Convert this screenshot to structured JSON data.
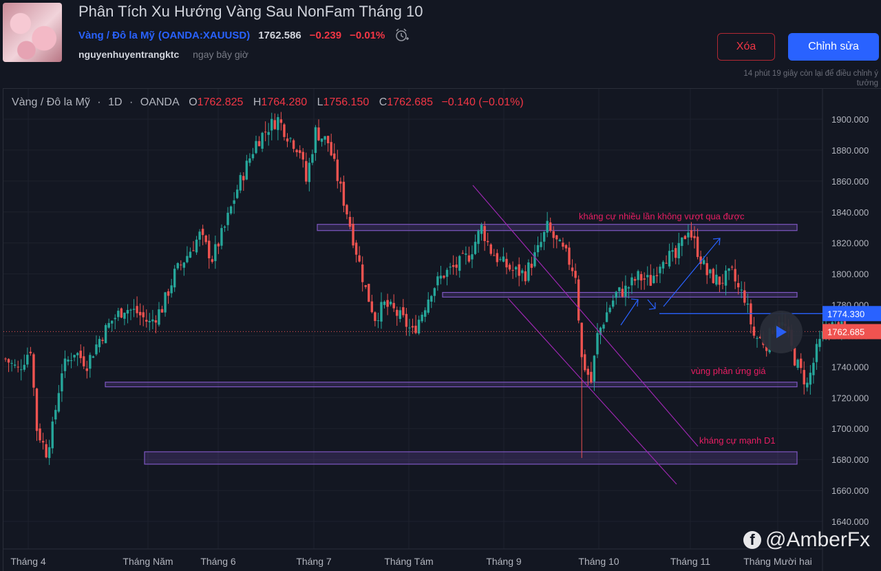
{
  "header": {
    "title": "Phân Tích Xu Hướng Vàng Sau NonFam Tháng 10",
    "symbol_name": "Vàng / Đô la Mỹ",
    "symbol_open_paren": "(",
    "symbol_code": "OANDA:XAUUSD",
    "symbol_close_paren": ")",
    "price": "1762.586",
    "change": "−0.239",
    "change_pct": "−0.01%",
    "author": "nguyenhuyentrangktc",
    "posted": "ngay bây giờ",
    "delete_label": "Xóa",
    "edit_label": "Chỉnh sửa",
    "remaining_line1": "14 phút 19 giây còn lại để điều chỉnh ý",
    "remaining_line2": "tưởng"
  },
  "legend": {
    "symbol": "Vàng / Đô la Mỹ",
    "sep1": "·",
    "interval": "1D",
    "sep2": "·",
    "exchange": "OANDA",
    "o_label": "O",
    "o_value": "1762.825",
    "h_label": "H",
    "h_value": "1764.280",
    "l_label": "L",
    "l_value": "1756.150",
    "c_label": "C",
    "c_value": "1762.685",
    "change": "−0.140 (−0.01%)"
  },
  "watermark": "@AmberFx",
  "colors": {
    "up": "#26a69a",
    "down": "#ef5350",
    "zone": "#7e57c2",
    "annotation": "#e91e63",
    "blue_line": "#2962ff",
    "bg": "#131722"
  },
  "chart_data": {
    "type": "candlestick",
    "interval": "1D",
    "x_labels": [
      "Tháng 4",
      "Tháng Năm",
      "Tháng 6",
      "Tháng 7",
      "Tháng Tám",
      "Tháng 9",
      "Tháng 10",
      "Tháng 11",
      "Tháng Mười hai"
    ],
    "y_ticks": [
      "1640.000",
      "1660.000",
      "1680.000",
      "1700.000",
      "1720.000",
      "1740.000",
      "1760.000",
      "1780.000",
      "1800.000",
      "1820.000",
      "1840.000",
      "1860.000",
      "1880.000",
      "1900.000"
    ],
    "ylim": [
      1628,
      1912
    ],
    "last_price_label": "1762.685",
    "line_price_label": "1774.330",
    "line_price": 1774.33,
    "last_price": 1762.685,
    "close_path": [
      [
        0,
        1745
      ],
      [
        4,
        1738
      ],
      [
        8,
        1752
      ],
      [
        10,
        1700
      ],
      [
        13,
        1685
      ],
      [
        15,
        1700
      ],
      [
        18,
        1738
      ],
      [
        22,
        1750
      ],
      [
        26,
        1742
      ],
      [
        30,
        1758
      ],
      [
        34,
        1770
      ],
      [
        38,
        1778
      ],
      [
        42,
        1775
      ],
      [
        46,
        1768
      ],
      [
        50,
        1778
      ],
      [
        54,
        1800
      ],
      [
        58,
        1812
      ],
      [
        62,
        1825
      ],
      [
        66,
        1810
      ],
      [
        70,
        1830
      ],
      [
        74,
        1855
      ],
      [
        77,
        1870
      ],
      [
        80,
        1885
      ],
      [
        84,
        1895
      ],
      [
        87,
        1900
      ],
      [
        90,
        1890
      ],
      [
        94,
        1880
      ],
      [
        96,
        1860
      ],
      [
        99,
        1892
      ],
      [
        103,
        1885
      ],
      [
        106,
        1862
      ],
      [
        109,
        1840
      ],
      [
        112,
        1815
      ],
      [
        115,
        1790
      ],
      [
        118,
        1772
      ],
      [
        121,
        1780
      ],
      [
        124,
        1776
      ],
      [
        127,
        1770
      ],
      [
        130,
        1762
      ],
      [
        133,
        1775
      ],
      [
        136,
        1790
      ],
      [
        140,
        1800
      ],
      [
        144,
        1805
      ],
      [
        148,
        1812
      ],
      [
        152,
        1830
      ],
      [
        155,
        1815
      ],
      [
        158,
        1808
      ],
      [
        162,
        1802
      ],
      [
        166,
        1800
      ],
      [
        170,
        1815
      ],
      [
        173,
        1830
      ],
      [
        176,
        1820
      ],
      [
        179,
        1812
      ],
      [
        182,
        1800
      ],
      [
        184,
        1745
      ],
      [
        187,
        1730
      ],
      [
        189,
        1760
      ],
      [
        192,
        1775
      ],
      [
        195,
        1787
      ],
      [
        198,
        1790
      ],
      [
        202,
        1798
      ],
      [
        206,
        1795
      ],
      [
        210,
        1812
      ],
      [
        214,
        1810
      ],
      [
        218,
        1830
      ],
      [
        221,
        1815
      ],
      [
        224,
        1800
      ],
      [
        228,
        1795
      ],
      [
        232,
        1800
      ],
      [
        234,
        1790
      ],
      [
        236,
        1785
      ],
      [
        239,
        1760
      ],
      [
        243,
        1755
      ],
      [
        246,
        1770
      ],
      [
        249,
        1765
      ],
      [
        252,
        1745
      ],
      [
        256,
        1728
      ],
      [
        259,
        1750
      ],
      [
        262,
        1765
      ],
      [
        265,
        1767
      ],
      [
        268,
        1763
      ]
    ],
    "zones": [
      {
        "from": 1828,
        "to": 1832,
        "label": ""
      },
      {
        "from": 1785,
        "to": 1788,
        "label": ""
      },
      {
        "from": 1727,
        "to": 1730,
        "label": ""
      },
      {
        "from": 1677,
        "to": 1685,
        "label": ""
      }
    ],
    "annotations": [
      {
        "text": "kháng cự nhiều lần không vượt qua được",
        "price": 1837
      },
      {
        "text": "vùng phản ứng giá",
        "price": 1737
      },
      {
        "text": "kháng cự mạnh D1",
        "price": 1692
      }
    ]
  }
}
